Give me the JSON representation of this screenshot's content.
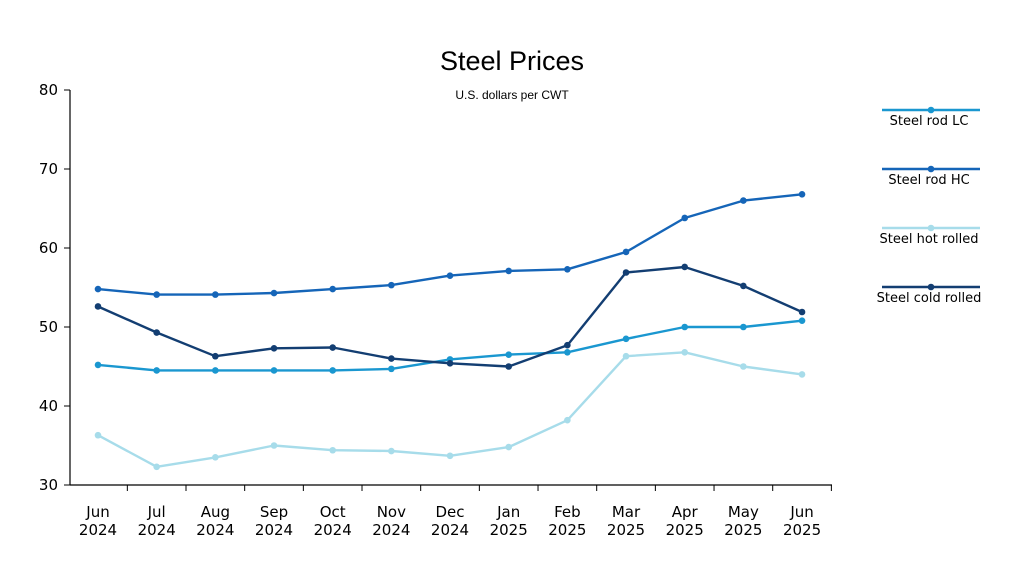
{
  "chart_data": {
    "type": "line",
    "title": "Steel Prices",
    "subtitle": "U.S. dollars per CWT",
    "xlabel": "",
    "ylabel": "",
    "ylim": [
      30,
      80
    ],
    "yticks": [
      30,
      40,
      50,
      60,
      70,
      80
    ],
    "grid": false,
    "legend_position": "right",
    "categories": [
      [
        "Jun",
        "2024"
      ],
      [
        "Jul",
        "2024"
      ],
      [
        "Aug",
        "2024"
      ],
      [
        "Sep",
        "2024"
      ],
      [
        "Oct",
        "2024"
      ],
      [
        "Nov",
        "2024"
      ],
      [
        "Dec",
        "2024"
      ],
      [
        "Jan",
        "2025"
      ],
      [
        "Feb",
        "2025"
      ],
      [
        "Mar",
        "2025"
      ],
      [
        "Apr",
        "2025"
      ],
      [
        "May",
        "2025"
      ],
      [
        "Jun",
        "2025"
      ]
    ],
    "series": [
      {
        "name": "Steel rod LC",
        "color": "#1a97d0",
        "values": [
          45.2,
          44.5,
          44.5,
          44.5,
          44.5,
          44.7,
          45.9,
          46.5,
          46.8,
          48.5,
          50.0,
          50.0,
          50.8
        ]
      },
      {
        "name": "Steel rod HC",
        "color": "#1565b8",
        "values": [
          54.8,
          54.1,
          54.1,
          54.3,
          54.8,
          55.3,
          56.5,
          57.1,
          57.3,
          59.5,
          63.8,
          66.0,
          66.8
        ]
      },
      {
        "name": "Steel hot rolled",
        "color": "#a7dcea",
        "values": [
          36.3,
          32.3,
          33.5,
          35.0,
          34.4,
          34.3,
          33.7,
          34.8,
          38.2,
          46.3,
          46.8,
          45.0,
          44.0
        ]
      },
      {
        "name": "Steel cold rolled",
        "color": "#133e72",
        "values": [
          52.6,
          49.3,
          46.3,
          47.3,
          47.4,
          46.0,
          45.4,
          45.0,
          47.7,
          56.9,
          57.6,
          55.2,
          51.9
        ]
      }
    ]
  }
}
